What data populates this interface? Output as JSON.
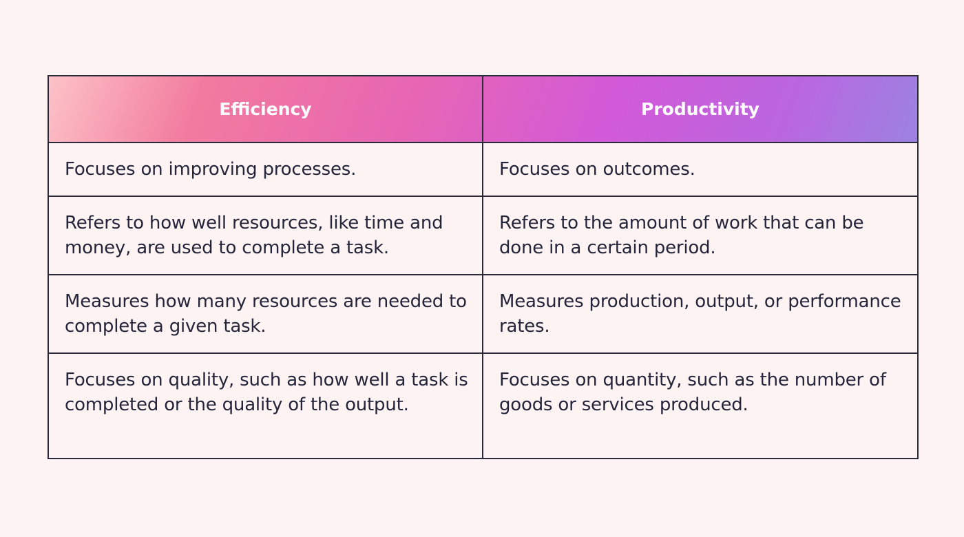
{
  "table": {
    "headers": [
      "Efficiency",
      "Productivity"
    ],
    "rows": [
      [
        "Focuses on improving processes.",
        "Focuses on outcomes."
      ],
      [
        "Refers to how well resources, like time and money, are used to complete a task.",
        "Refers to the amount of work that can be done in a certain period."
      ],
      [
        "Measures how many resources are needed to complete a given task.",
        "Measures production, output, or performance rates."
      ],
      [
        "Focuses on quality, such as how well a task is completed or the quality of the output.",
        "Focuses on quantity, such as the number of goods or services produced."
      ]
    ]
  },
  "colors": {
    "background": "#fdf3f2",
    "border": "#2a2a3a",
    "text": "#24243a",
    "header_text": "#ffffff",
    "header_gradient": [
      "#fdc3c8",
      "#f27a9e",
      "#e666b4",
      "#d35ad8",
      "#bb66df",
      "#9b82e2"
    ]
  }
}
